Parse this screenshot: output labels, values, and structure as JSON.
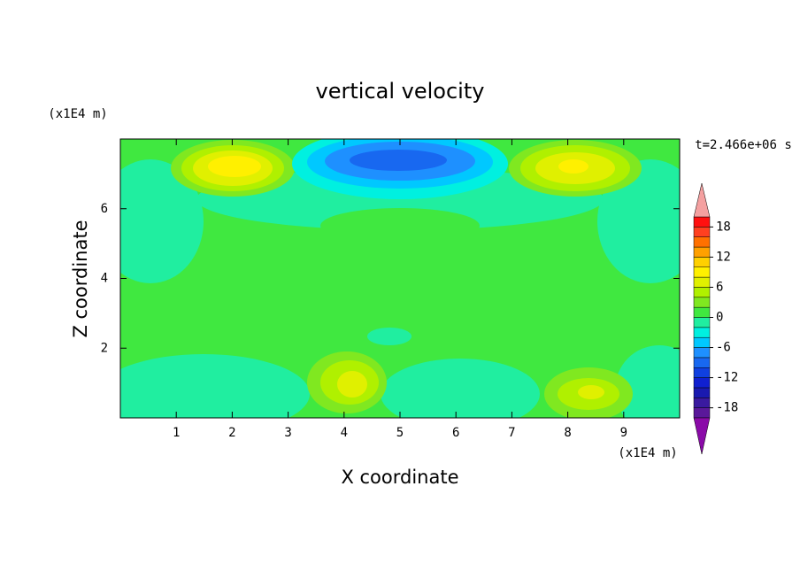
{
  "chart_data": {
    "type": "contour",
    "title": "vertical velocity",
    "x_label": "X coordinate",
    "y_label": "Z coordinate",
    "x_unit_label": "(x1E4 m)",
    "y_unit_label": "(x1E4 m)",
    "time_label": "t=2.466e+06 s",
    "xlim": [
      0,
      10
    ],
    "ylim": [
      0,
      8
    ],
    "xticks": [
      1,
      2,
      3,
      4,
      5,
      6,
      7,
      8,
      9
    ],
    "yticks": [
      2,
      4,
      6
    ],
    "colorbar": {
      "levels": [
        -20,
        -18,
        -16,
        -14,
        -12,
        -10,
        -8,
        -6,
        -4,
        -2,
        0,
        2,
        4,
        6,
        8,
        10,
        12,
        14,
        16,
        18,
        20
      ],
      "colors": [
        "#5a189a",
        "#3a1aa0",
        "#1a1ab0",
        "#1020d0",
        "#1040e0",
        "#1868f0",
        "#1e90ff",
        "#00c8ff",
        "#00f0e0",
        "#20eea0",
        "#40e840",
        "#80e820",
        "#b0f000",
        "#e0f000",
        "#fff000",
        "#ffd000",
        "#ffa000",
        "#ff7000",
        "#ff4020",
        "#ff1010"
      ],
      "under_color": "#8a0aa8",
      "over_color": "#f4a0a0",
      "ticks": [
        -18,
        -12,
        -6,
        0,
        6,
        12,
        18
      ]
    }
  }
}
